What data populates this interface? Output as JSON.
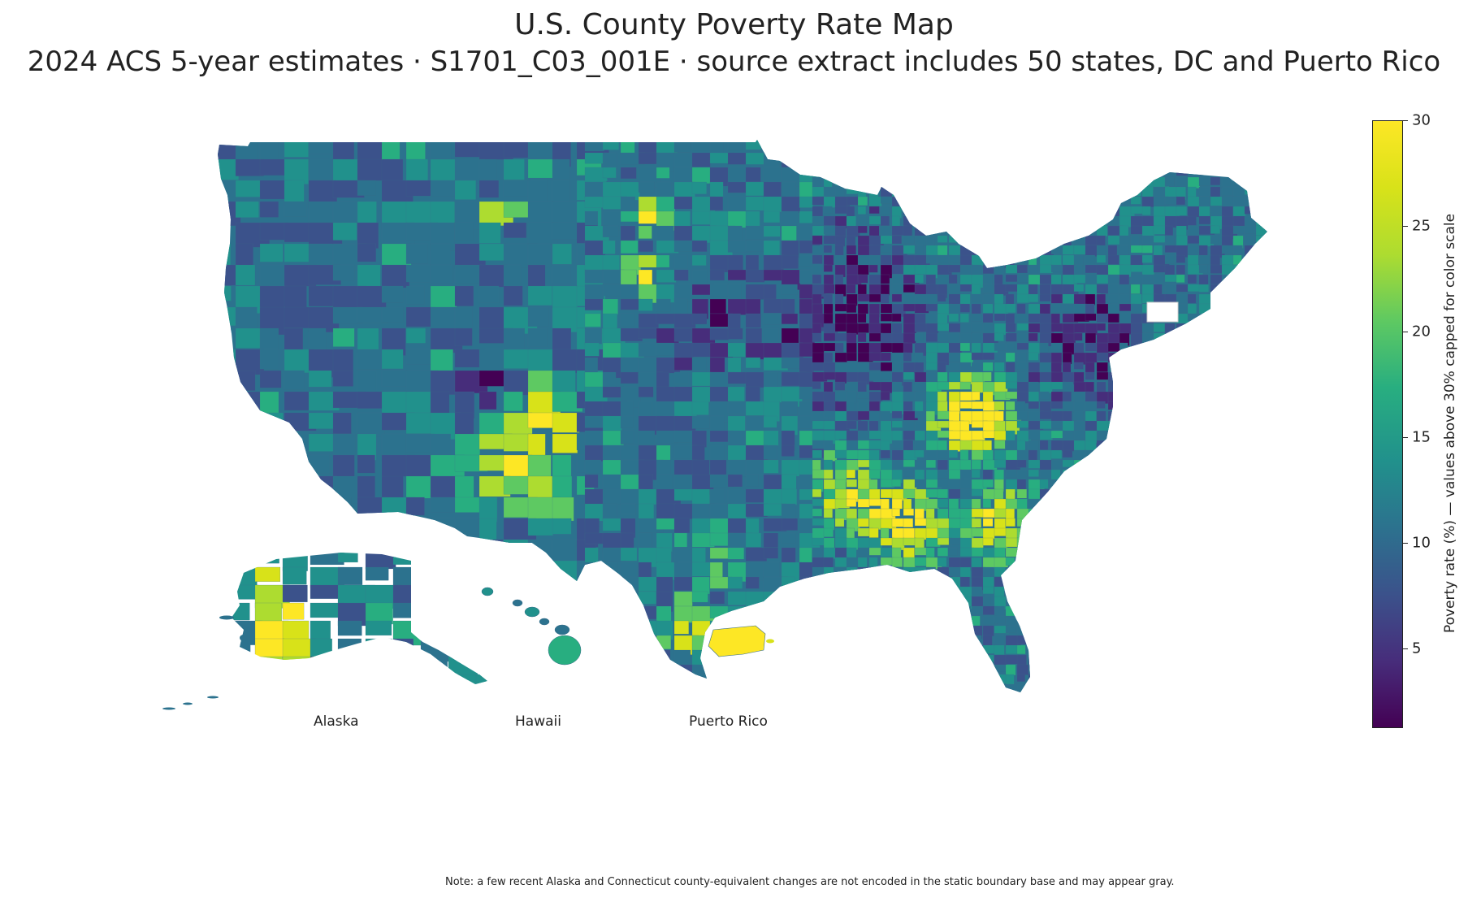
{
  "title": "U.S. County Poverty Rate Map",
  "subtitle": "2024 ACS 5-year estimates · S1701_C03_001E · source extract includes 50 states, DC and Puerto Rico",
  "insets": {
    "alaska": "Alaska",
    "hawaii": "Hawaii",
    "puerto_rico": "Puerto Rico"
  },
  "note": "Note: a few recent Alaska and Connecticut county-equivalent changes are not encoded in the static boundary base and may appear gray.",
  "colorbar": {
    "label": "Poverty rate (%) — values above 30% capped for color scale",
    "min": 1.3,
    "max": 30,
    "ticks": [
      "5",
      "10",
      "15",
      "20",
      "25",
      "30"
    ],
    "colorscale": "viridis",
    "colors": [
      "#440154",
      "#472d7b",
      "#3b528b",
      "#2c728e",
      "#21918c",
      "#28ae80",
      "#5ec962",
      "#addc30",
      "#d8e219",
      "#fde725"
    ]
  }
}
